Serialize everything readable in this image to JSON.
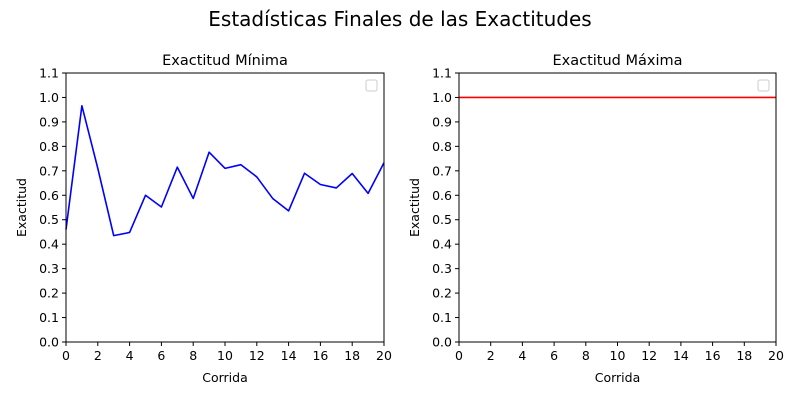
{
  "figure": {
    "suptitle": "Estadísticas Finales de las Exactitudes"
  },
  "chart_data": [
    {
      "type": "line",
      "title": "Exactitud Mínima",
      "xlabel": "Corrida",
      "ylabel": "Exactitud",
      "xlim": [
        0,
        20
      ],
      "ylim": [
        0.0,
        1.1
      ],
      "xticks": [
        "0",
        "2",
        "4",
        "6",
        "8",
        "10",
        "12",
        "14",
        "16",
        "18",
        "20"
      ],
      "yticks": [
        "0.0",
        "0.1",
        "0.2",
        "0.3",
        "0.4",
        "0.5",
        "0.6",
        "0.7",
        "0.8",
        "0.9",
        "1.0",
        "1.1"
      ],
      "legend": "top-right (empty)",
      "grid": false,
      "series": [
        {
          "color": "#0000ff",
          "x": [
            0,
            1,
            2,
            3,
            4,
            5,
            6,
            7,
            8,
            9,
            10,
            11,
            12,
            13,
            14,
            15,
            16,
            17,
            18,
            19,
            20
          ],
          "y": [
            0.46,
            0.966,
            0.71,
            0.435,
            0.448,
            0.6,
            0.552,
            0.715,
            0.587,
            0.776,
            0.71,
            0.725,
            0.675,
            0.587,
            0.536,
            0.69,
            0.644,
            0.63,
            0.689,
            0.608,
            0.733
          ]
        }
      ]
    },
    {
      "type": "line",
      "title": "Exactitud Máxima",
      "xlabel": "Corrida",
      "ylabel": "Exactitud",
      "xlim": [
        0,
        20
      ],
      "ylim": [
        0.0,
        1.1
      ],
      "xticks": [
        "0",
        "2",
        "4",
        "6",
        "8",
        "10",
        "12",
        "14",
        "16",
        "18",
        "20"
      ],
      "yticks": [
        "0.0",
        "0.1",
        "0.2",
        "0.3",
        "0.4",
        "0.5",
        "0.6",
        "0.7",
        "0.8",
        "0.9",
        "1.0",
        "1.1"
      ],
      "legend": "top-right (empty)",
      "grid": false,
      "series": [
        {
          "color": "#ff0000",
          "x": [
            0,
            1,
            2,
            3,
            4,
            5,
            6,
            7,
            8,
            9,
            10,
            11,
            12,
            13,
            14,
            15,
            16,
            17,
            18,
            19,
            20
          ],
          "y": [
            1.0,
            1.0,
            1.0,
            1.0,
            1.0,
            1.0,
            1.0,
            1.0,
            1.0,
            1.0,
            1.0,
            1.0,
            1.0,
            1.0,
            1.0,
            1.0,
            1.0,
            1.0,
            1.0,
            1.0,
            1.0
          ]
        }
      ]
    }
  ]
}
